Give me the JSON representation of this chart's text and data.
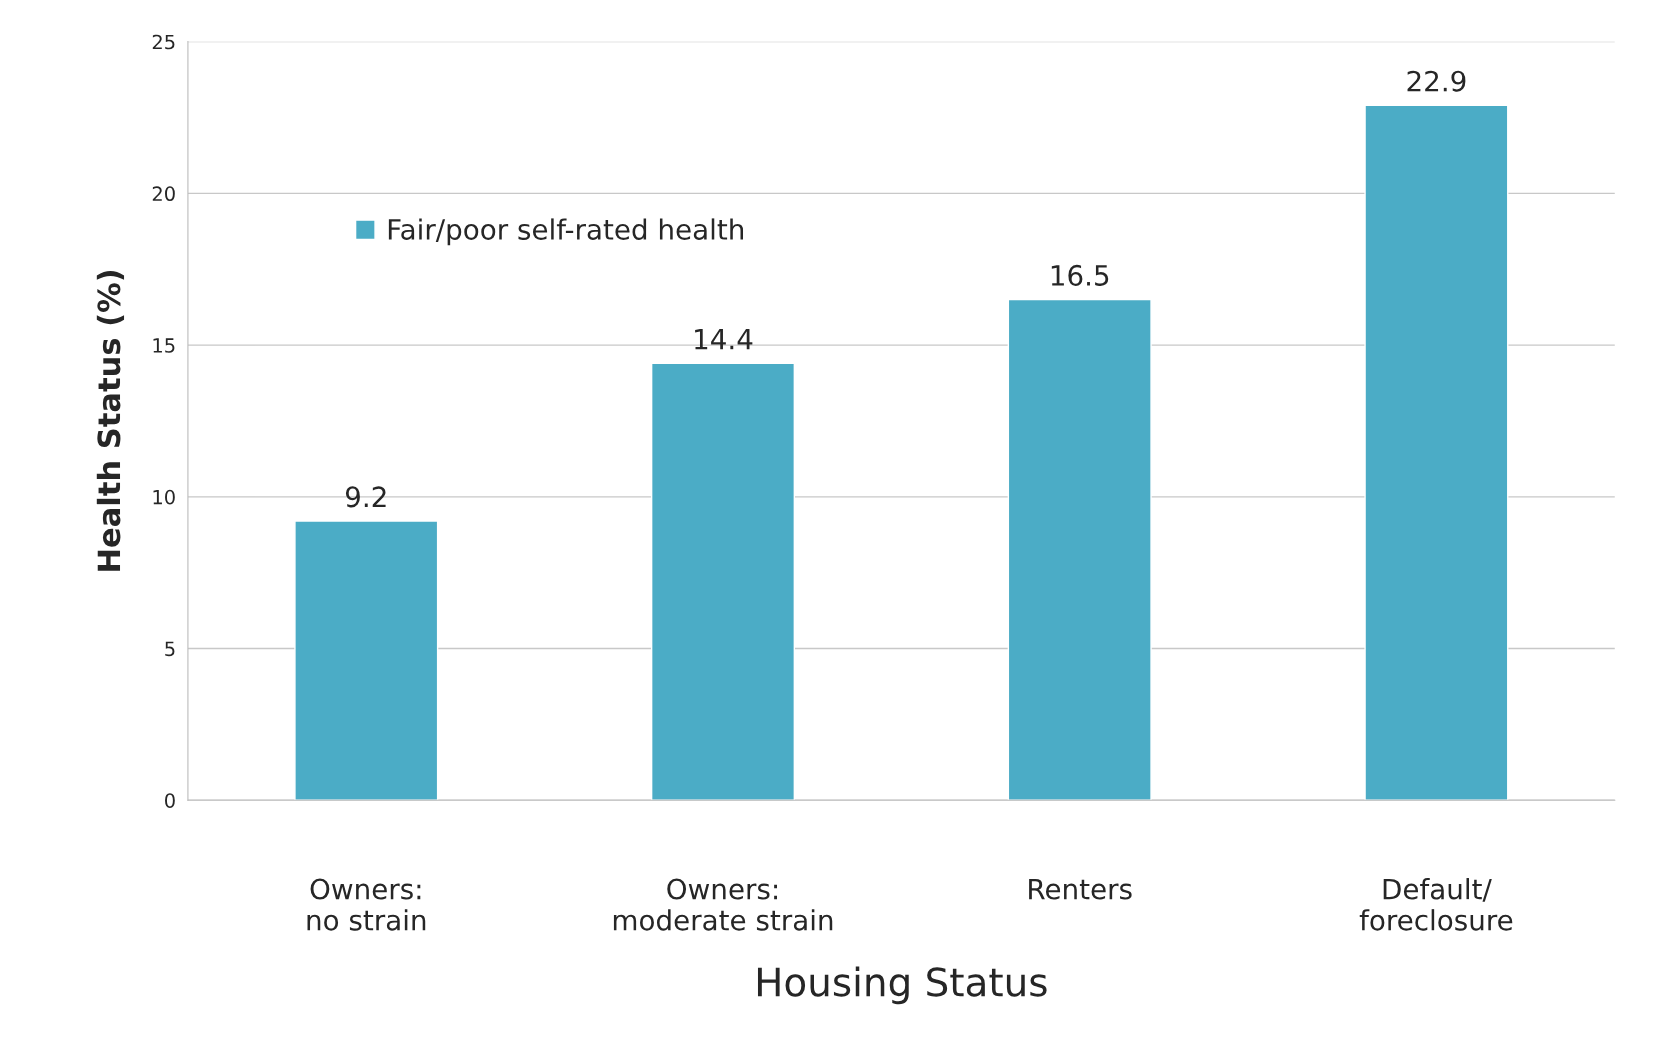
{
  "chart_data": {
    "type": "bar",
    "xlabel": "Housing Status",
    "ylabel": "Health Status (%)",
    "categories": [
      "Owners:\nno strain",
      "Owners:\nmoderate strain",
      "Renters",
      "Default/\nforeclosure"
    ],
    "series": [
      {
        "name": "Fair/poor self-rated health",
        "color": "#4bacc6",
        "values": [
          9.2,
          14.4,
          16.5,
          22.9
        ]
      }
    ],
    "ylim": [
      0,
      25
    ],
    "yticks": [
      0,
      5,
      10,
      15,
      20,
      25
    ],
    "grid": "y",
    "legend": "top left",
    "data_labels": true
  }
}
